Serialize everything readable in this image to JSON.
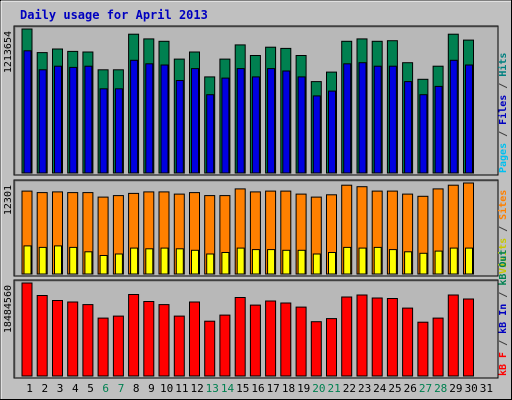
{
  "chart_data": {
    "type": "bar",
    "title": "Daily usage for April 2013",
    "days": [
      "1",
      "2",
      "3",
      "4",
      "5",
      "6",
      "7",
      "8",
      "9",
      "10",
      "11",
      "12",
      "13",
      "14",
      "15",
      "16",
      "17",
      "18",
      "19",
      "20",
      "21",
      "22",
      "23",
      "24",
      "25",
      "26",
      "27",
      "28",
      "29",
      "30",
      "31"
    ],
    "weekend_days": [
      6,
      7,
      13,
      14,
      20,
      21,
      27,
      28
    ],
    "panels": [
      {
        "id": "top",
        "ymax_label": "1213654",
        "ymax": 1213654,
        "legend": [
          {
            "text": "Pages",
            "color": "#00c0f0"
          },
          {
            "text": " / ",
            "color": "#404040"
          },
          {
            "text": "Files",
            "color": "#0000c0"
          },
          {
            "text": " / ",
            "color": "#404040"
          },
          {
            "text": "Hits",
            "color": "#008080"
          }
        ],
        "series": [
          {
            "name": "Hits",
            "color": "#008050",
            "values": [
              1213654,
              1015000,
              1045000,
              1025000,
              1020000,
              870000,
              870000,
              1170000,
              1130000,
              1110000,
              960000,
              1020000,
              810000,
              960000,
              1080000,
              990000,
              1060000,
              1050000,
              990000,
              770000,
              850000,
              1110000,
              1130000,
              1110000,
              1115000,
              930000,
              790000,
              900000,
              1170000,
              1120000,
              null
            ]
          },
          {
            "name": "Files",
            "color": "#0000e0",
            "values": [
              1030000,
              870000,
              900000,
              890000,
              900000,
              710000,
              710000,
              950000,
              920000,
              910000,
              780000,
              880000,
              660000,
              800000,
              880000,
              810000,
              880000,
              860000,
              810000,
              650000,
              690000,
              920000,
              930000,
              900000,
              900000,
              770000,
              660000,
              730000,
              950000,
              910000,
              null
            ]
          },
          {
            "name": "Pages",
            "color": "#00c0ff",
            "values": [
              null,
              null,
              null,
              null,
              null,
              null,
              null,
              null,
              null,
              null,
              null,
              null,
              null,
              null,
              null,
              null,
              null,
              null,
              null,
              null,
              null,
              null,
              null,
              null,
              null,
              null,
              null,
              null,
              null,
              null,
              null
            ]
          }
        ]
      },
      {
        "id": "middle",
        "ymax_label": "12301",
        "ymax": 12301,
        "legend": [
          {
            "text": "Visits",
            "color": "#c8c800"
          },
          {
            "text": " / ",
            "color": "#404040"
          },
          {
            "text": "Sites",
            "color": "#ff8000"
          }
        ],
        "series": [
          {
            "name": "Sites",
            "color": "#ff8000",
            "values": [
              11200,
              11000,
              11100,
              11000,
              11000,
              10400,
              10600,
              10900,
              11100,
              11100,
              10800,
              11000,
              10600,
              10600,
              11500,
              11100,
              11200,
              11200,
              10800,
              10400,
              10700,
              12000,
              11800,
              11200,
              11200,
              10800,
              10500,
              11500,
              12000,
              12301,
              null
            ]
          },
          {
            "name": "Visits",
            "color": "#ffff00",
            "values": [
              3800,
              3600,
              3800,
              3600,
              3000,
              2500,
              2700,
              3500,
              3400,
              3500,
              3400,
              3200,
              2700,
              2900,
              3500,
              3300,
              3300,
              3200,
              3200,
              2700,
              2900,
              3600,
              3500,
              3600,
              3300,
              3000,
              2800,
              3100,
              3500,
              3500,
              null
            ]
          }
        ]
      },
      {
        "id": "bottom",
        "ymax_label": "18484560",
        "ymax": 18484560,
        "legend": [
          {
            "text": "kB F",
            "color": "#ff0000"
          },
          {
            "text": " / ",
            "color": "#404040"
          },
          {
            "text": "kB In",
            "color": "#0000c0"
          },
          {
            "text": " / ",
            "color": "#404040"
          },
          {
            "text": "kB Out",
            "color": "#008050"
          }
        ],
        "series": [
          {
            "name": "kB F",
            "color": "#ff0000",
            "values": [
              18484560,
              16000000,
              15000000,
              14700000,
              14200000,
              11500000,
              11900000,
              16200000,
              14800000,
              14200000,
              11900000,
              14700000,
              10900000,
              12100000,
              15600000,
              14100000,
              14900000,
              14500000,
              13700000,
              10800000,
              11400000,
              15700000,
              16100000,
              15500000,
              15400000,
              13500000,
              10700000,
              11500000,
              16100000,
              15300000,
              null
            ]
          }
        ]
      }
    ]
  }
}
